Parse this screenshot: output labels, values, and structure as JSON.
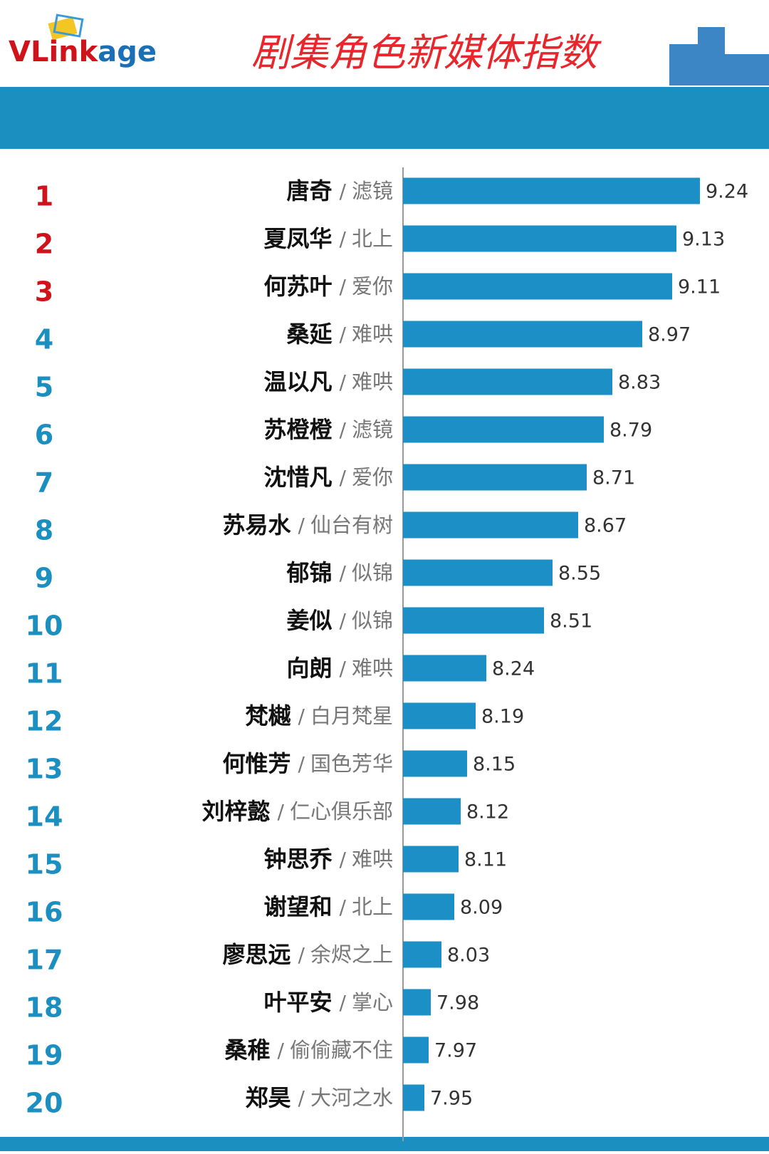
{
  "chart_data": {
    "type": "barh",
    "logo": "VLinkage",
    "title": "剧集角色新媒体指数",
    "ranks": [
      1,
      2,
      3,
      4,
      5,
      6,
      7,
      8,
      9,
      10,
      11,
      12,
      13,
      14,
      15,
      16,
      17,
      18,
      19,
      20
    ],
    "categories": [
      "唐奇",
      "夏凤华",
      "何苏叶",
      "桑延",
      "温以凡",
      "苏橙橙",
      "沈惜凡",
      "苏易水",
      "郁锦",
      "姜似",
      "向朗",
      "梵樾",
      "何惟芳",
      "刘梓懿",
      "钟思乔",
      "谢望和",
      "廖思远",
      "叶平安",
      "桑稚",
      "郑昊"
    ],
    "separator": "/",
    "dramas": [
      "滤镜",
      "北上",
      "爱你",
      "难哄",
      "难哄",
      "滤镜",
      "爱你",
      "仙台有树",
      "似锦",
      "似锦",
      "难哄",
      "白月梵星",
      "国色芳华",
      "仁心俱乐部",
      "难哄",
      "北上",
      "余烬之上",
      "掌心",
      "偷偷藏不住",
      "大河之水"
    ],
    "values": [
      9.24,
      9.13,
      9.11,
      8.97,
      8.83,
      8.79,
      8.71,
      8.67,
      8.55,
      8.51,
      8.24,
      8.19,
      8.15,
      8.12,
      8.11,
      8.09,
      8.03,
      7.98,
      7.97,
      7.95
    ],
    "xlim": [
      7.85,
      9.3
    ],
    "color": "#1b8fc6",
    "rank_color": "#1a8fc0",
    "top_rank_color": "#d0121b",
    "top_ranks": 3
  }
}
